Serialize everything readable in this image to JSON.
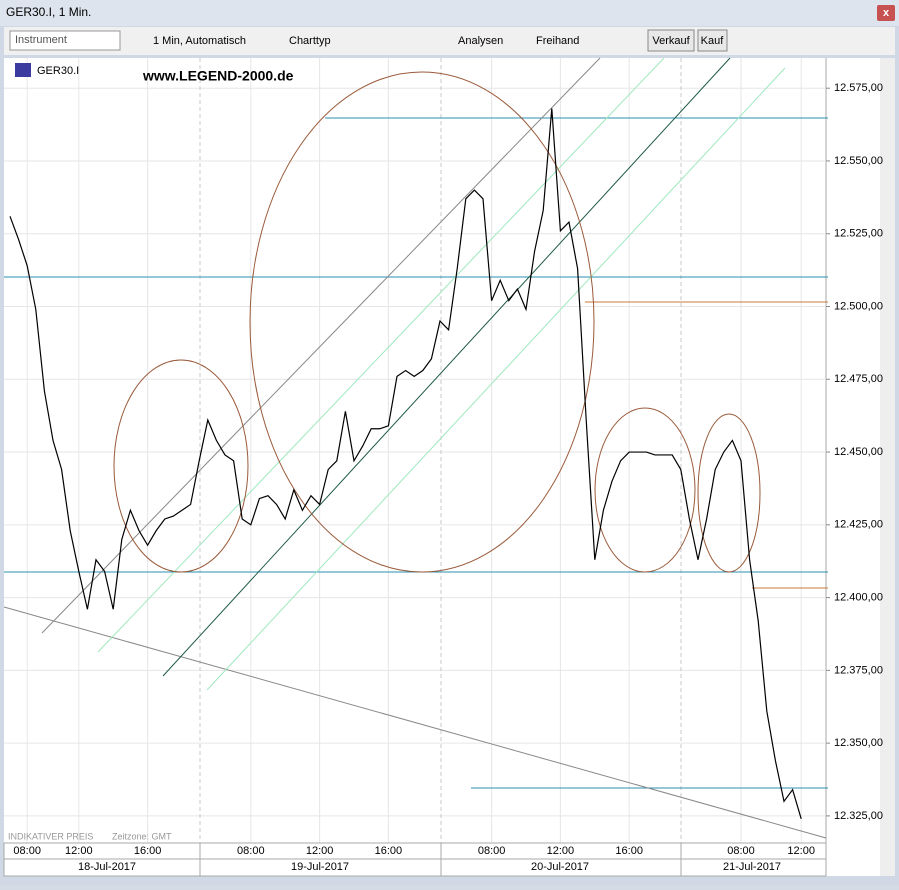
{
  "window": {
    "title": "GER30.I, 1 Min."
  },
  "toolbar": {
    "instrument": "Instrument",
    "interval": "1 Min, Automatisch",
    "chart_type": "Charttyp",
    "analyses": "Analysen",
    "freehand": "Freihand",
    "sell": "Verkauf",
    "buy": "Kauf"
  },
  "chart_header": {
    "symbol": "GER30.I",
    "watermark": "www.LEGEND-2000.de"
  },
  "footer": {
    "price_note": "INDIKATIVER PREIS",
    "timezone": "Zeitzone: GMT"
  },
  "dates": [
    "18-Jul-2017",
    "19-Jul-2017",
    "20-Jul-2017",
    "21-Jul-2017"
  ],
  "chart_data": {
    "type": "line",
    "color": "#000000",
    "grid": true,
    "categories": [
      null,
      null,
      "08:00",
      null,
      null,
      null,
      null,
      null,
      "12:00",
      null,
      null,
      null,
      null,
      null,
      null,
      null,
      "16:00",
      null,
      null,
      null,
      null,
      null,
      null,
      null,
      null,
      null,
      null,
      null,
      "08:00",
      null,
      null,
      null,
      null,
      null,
      null,
      null,
      "12:00",
      null,
      null,
      null,
      null,
      null,
      null,
      null,
      "16:00",
      null,
      null,
      null,
      null,
      null,
      null,
      null,
      null,
      null,
      null,
      null,
      "08:00",
      null,
      null,
      null,
      null,
      null,
      null,
      null,
      "12:00",
      null,
      null,
      null,
      null,
      null,
      null,
      null,
      "16:00",
      null,
      null,
      null,
      null,
      null,
      null,
      null,
      null,
      null,
      null,
      null,
      null,
      "08:00",
      null,
      null,
      null,
      null,
      null,
      null,
      "12:00"
    ],
    "values": [
      12531,
      12523,
      12514,
      12499,
      12471,
      12454,
      12444,
      12423,
      12409,
      12396,
      12413,
      12409,
      12396,
      12420,
      12430,
      12423,
      12418,
      12423,
      12427,
      12428,
      12430,
      12432,
      12447,
      12461,
      12454,
      12449,
      12447,
      12427,
      12425,
      12434,
      12435,
      12432,
      12427,
      12437,
      12430,
      12435,
      12432,
      12444,
      12447,
      12464,
      12447,
      12452,
      12458,
      12458,
      12459,
      12476,
      12478,
      12476,
      12478,
      12482,
      12495,
      12492,
      12513,
      12537,
      12540,
      12537,
      12502,
      12509,
      12502,
      12506,
      12499,
      12519,
      12533,
      12568,
      12526,
      12529,
      12513,
      12461,
      12413,
      12430,
      12440,
      12447,
      12450,
      12450,
      12450,
      12449,
      12449,
      12449,
      12444,
      12427,
      12413,
      12427,
      12444,
      12450,
      12454,
      12447,
      12413,
      12392,
      12361,
      12344,
      12330,
      12334,
      12324
    ],
    "ylim": [
      12315,
      12584
    ],
    "yticks": [
      {
        "value": 12325,
        "label": "12.325,00"
      },
      {
        "value": 12350,
        "label": "12.350,00"
      },
      {
        "value": 12375,
        "label": "12.375,00"
      },
      {
        "value": 12400,
        "label": "12.400,00"
      },
      {
        "value": 12425,
        "label": "12.425,00"
      },
      {
        "value": 12450,
        "label": "12.450,00"
      },
      {
        "value": 12475,
        "label": "12.475,00"
      },
      {
        "value": 12500,
        "label": "12.500,00"
      },
      {
        "value": 12525,
        "label": "12.525,00"
      },
      {
        "value": 12550,
        "label": "12.550,00"
      },
      {
        "value": 12575,
        "label": "12.575,00"
      }
    ]
  }
}
